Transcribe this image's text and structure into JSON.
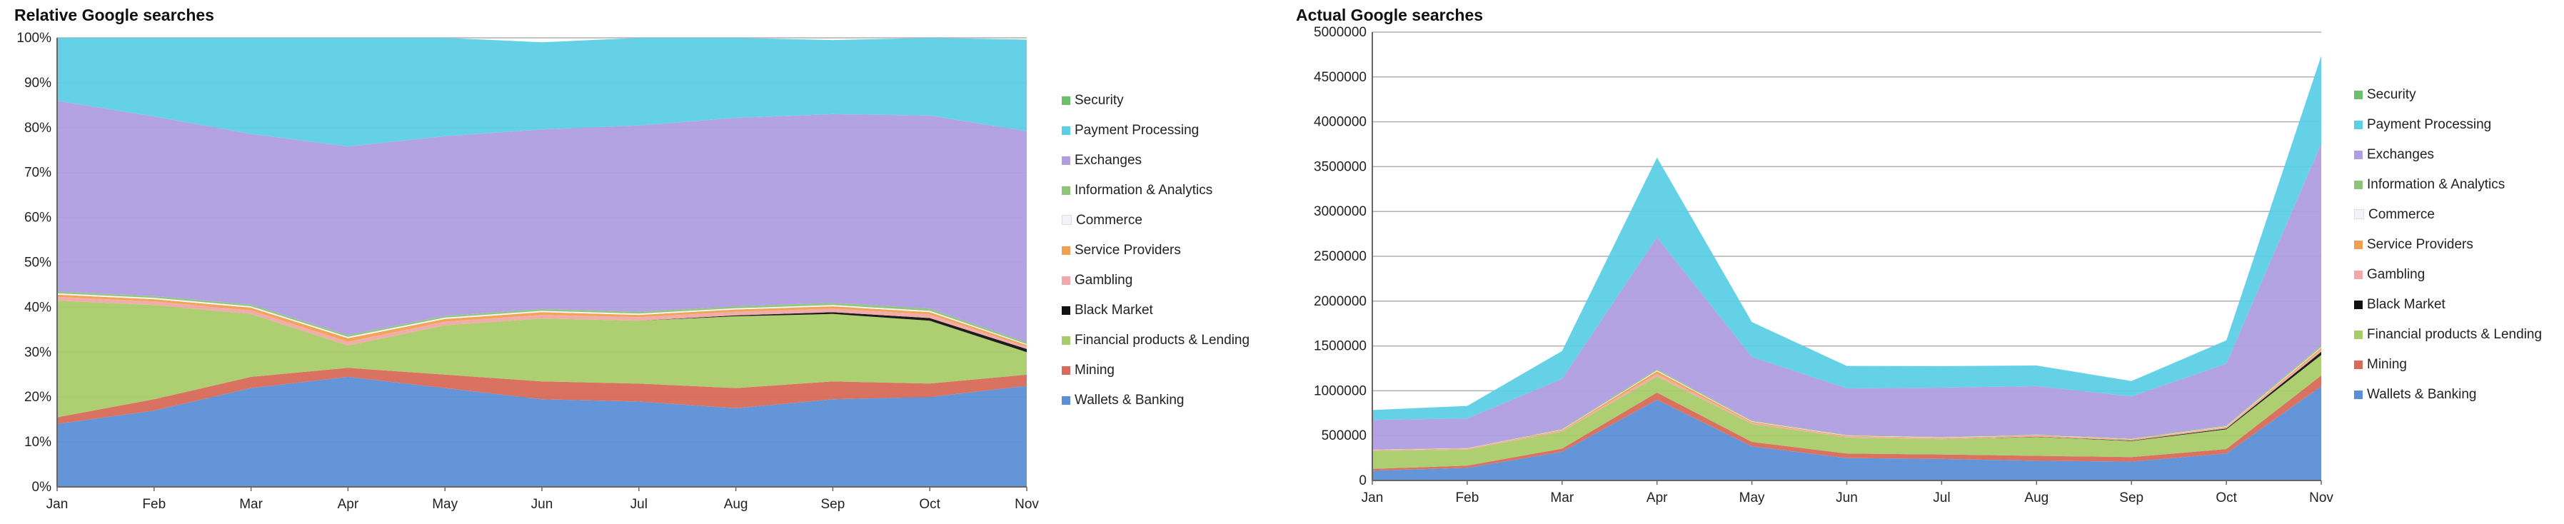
{
  "chart_data": [
    {
      "type": "area",
      "stacked": "percent",
      "title": "Relative Google searches",
      "xlabel": "",
      "ylabel": "",
      "categories": [
        "Jan",
        "Feb",
        "Mar",
        "Apr",
        "May",
        "Jun",
        "Jul",
        "Aug",
        "Sep",
        "Oct",
        "Nov"
      ],
      "y_ticks": [
        "0%",
        "10%",
        "20%",
        "30%",
        "40%",
        "50%",
        "60%",
        "70%",
        "80%",
        "90%",
        "100%"
      ],
      "ylim": [
        0,
        100
      ],
      "grid": true,
      "legend_position": "right",
      "series": [
        {
          "name": "Wallets & Banking",
          "color": "#5b8fd6",
          "values": [
            14,
            17,
            22,
            24.5,
            22,
            19.5,
            19,
            17.5,
            19.5,
            20,
            22.5
          ]
        },
        {
          "name": "Mining",
          "color": "#d86a5a",
          "values": [
            1.5,
            2.5,
            2.5,
            2,
            3,
            4,
            4,
            4.5,
            4,
            3,
            2.5
          ]
        },
        {
          "name": "Financial products & Lending",
          "color": "#a9cc6a",
          "values": [
            26,
            21,
            14,
            5,
            11,
            14,
            14,
            16,
            15,
            14,
            5
          ]
        },
        {
          "name": "Black Market",
          "color": "#111111",
          "values": [
            0,
            0,
            0,
            0,
            0,
            0,
            0,
            0.2,
            0.4,
            0.6,
            0.7
          ]
        },
        {
          "name": "Gambling",
          "color": "#f2a8a8",
          "values": [
            0.8,
            0.8,
            0.8,
            0.8,
            0.8,
            0.8,
            0.8,
            0.8,
            0.8,
            0.8,
            0.5
          ]
        },
        {
          "name": "Service Providers",
          "color": "#f0a050",
          "values": [
            0.5,
            0.5,
            0.6,
            0.8,
            0.6,
            0.6,
            0.5,
            0.5,
            0.5,
            0.5,
            0.4
          ]
        },
        {
          "name": "Commerce",
          "color": "#f4f2f8",
          "values": [
            0.3,
            0.3,
            0.3,
            0.3,
            0.3,
            0.3,
            0.3,
            0.3,
            0.3,
            0.3,
            0.2
          ]
        },
        {
          "name": "Information & Analytics",
          "color": "#8cc47a",
          "values": [
            0.4,
            0.4,
            0.4,
            0.4,
            0.4,
            0.4,
            0.4,
            0.4,
            0.5,
            0.5,
            0.4
          ]
        },
        {
          "name": "Exchanges",
          "color": "#b09ee0",
          "values": [
            42.5,
            40,
            38,
            42,
            40,
            40,
            41.5,
            42,
            42,
            43,
            47
          ]
        },
        {
          "name": "Payment Processing",
          "color": "#5ccfe6",
          "values": [
            14,
            17.5,
            21.4,
            24.2,
            21.9,
            19.4,
            19.5,
            17.8,
            16.5,
            17.3,
            20.4
          ]
        },
        {
          "name": "Security",
          "color": "#6cbf6c",
          "values": [
            0,
            0,
            0,
            0,
            0,
            0,
            0,
            0,
            0,
            0,
            0
          ]
        }
      ]
    },
    {
      "type": "area",
      "stacked": "absolute",
      "title": "Actual Google searches",
      "xlabel": "",
      "ylabel": "",
      "categories": [
        "Jan",
        "Feb",
        "Mar",
        "Apr",
        "May",
        "Jun",
        "Jul",
        "Aug",
        "Sep",
        "Oct",
        "Nov"
      ],
      "y_ticks": [
        "0",
        "500000",
        "1000000",
        "1500000",
        "2000000",
        "2500000",
        "3000000",
        "3500000",
        "4000000",
        "4500000",
        "5000000"
      ],
      "ylim": [
        0,
        5000000
      ],
      "grid": true,
      "legend_position": "right",
      "series": [
        {
          "name": "Wallets & Banking",
          "color": "#5b8fd6",
          "values": [
            110000,
            140000,
            320000,
            900000,
            380000,
            250000,
            240000,
            220000,
            210000,
            300000,
            1050000
          ]
        },
        {
          "name": "Mining",
          "color": "#d86a5a",
          "values": [
            20000,
            25000,
            35000,
            80000,
            50000,
            50000,
            50000,
            55000,
            50000,
            50000,
            120000
          ]
        },
        {
          "name": "Financial products & Lending",
          "color": "#a9cc6a",
          "values": [
            200000,
            180000,
            190000,
            180000,
            200000,
            180000,
            170000,
            210000,
            180000,
            220000,
            230000
          ]
        },
        {
          "name": "Black Market",
          "color": "#111111",
          "values": [
            0,
            0,
            0,
            0,
            0,
            0,
            0,
            2000,
            5000,
            9000,
            35000
          ]
        },
        {
          "name": "Gambling",
          "color": "#f2a8a8",
          "values": [
            6000,
            7000,
            10000,
            28000,
            14000,
            10000,
            10000,
            10000,
            9000,
            12000,
            24000
          ]
        },
        {
          "name": "Service Providers",
          "color": "#f0a050",
          "values": [
            4000,
            4000,
            9000,
            29000,
            11000,
            8000,
            6000,
            6000,
            5000,
            8000,
            19000
          ]
        },
        {
          "name": "Commerce",
          "color": "#f4f2f8",
          "values": [
            2000,
            2000,
            4000,
            11000,
            5000,
            4000,
            4000,
            4000,
            3000,
            5000,
            9000
          ]
        },
        {
          "name": "Information & Analytics",
          "color": "#8cc47a",
          "values": [
            3000,
            3000,
            6000,
            14000,
            7000,
            5000,
            5000,
            5000,
            6000,
            8000,
            19000
          ]
        },
        {
          "name": "Exchanges",
          "color": "#b09ee0",
          "values": [
            330000,
            330000,
            560000,
            1470000,
            710000,
            520000,
            550000,
            540000,
            470000,
            690000,
            2250000
          ]
        },
        {
          "name": "Payment Processing",
          "color": "#5ccfe6",
          "values": [
            110000,
            140000,
            310000,
            890000,
            390000,
            250000,
            240000,
            230000,
            170000,
            260000,
            980000
          ]
        },
        {
          "name": "Security",
          "color": "#6cbf6c",
          "values": [
            0,
            0,
            0,
            0,
            0,
            0,
            0,
            0,
            0,
            0,
            0
          ]
        }
      ]
    }
  ]
}
